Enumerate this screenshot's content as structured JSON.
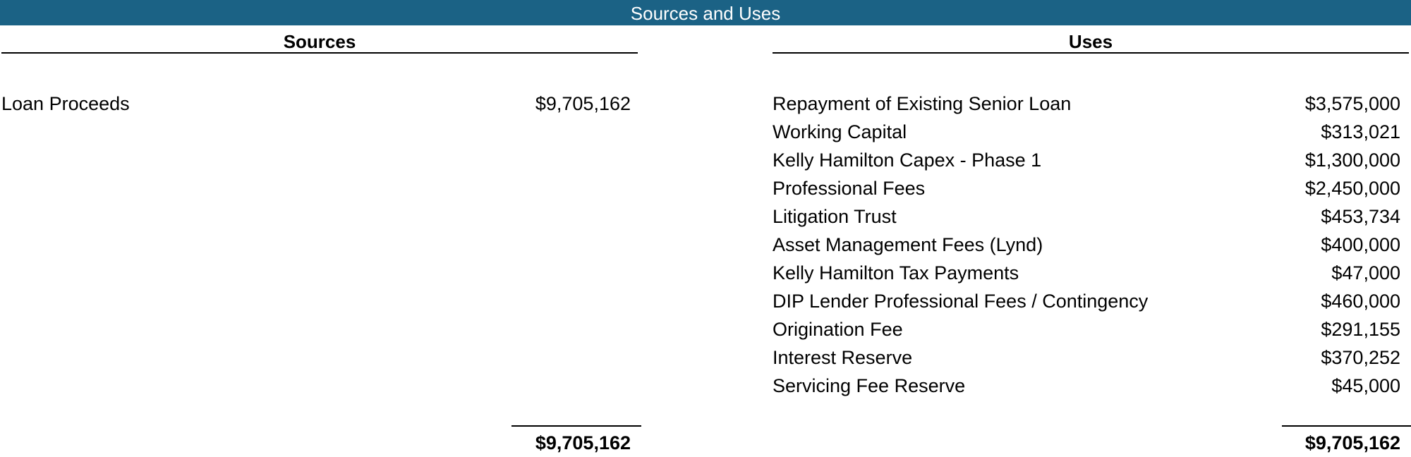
{
  "title": "Sources and Uses",
  "sources": {
    "header": "Sources",
    "items": [
      {
        "label": "Loan Proceeds",
        "amount": "$9,705,162"
      }
    ],
    "total": "$9,705,162"
  },
  "uses": {
    "header": "Uses",
    "items": [
      {
        "label": "Repayment of Existing Senior Loan",
        "amount": "$3,575,000"
      },
      {
        "label": "Working Capital",
        "amount": "$313,021"
      },
      {
        "label": "Kelly Hamilton Capex - Phase 1",
        "amount": "$1,300,000"
      },
      {
        "label": "Professional Fees",
        "amount": "$2,450,000"
      },
      {
        "label": "Litigation Trust",
        "amount": "$453,734"
      },
      {
        "label": "Asset Management Fees (Lynd)",
        "amount": "$400,000"
      },
      {
        "label": "Kelly Hamilton Tax Payments",
        "amount": "$47,000"
      },
      {
        "label": "DIP Lender Professional Fees / Contingency",
        "amount": "$460,000"
      },
      {
        "label": "Origination Fee",
        "amount": "$291,155"
      },
      {
        "label": "Interest Reserve",
        "amount": "$370,252"
      },
      {
        "label": "Servicing Fee Reserve",
        "amount": "$45,000"
      }
    ],
    "total": "$9,705,162"
  },
  "colors": {
    "banner_bg": "#1b6285",
    "banner_text": "#ffffff"
  }
}
